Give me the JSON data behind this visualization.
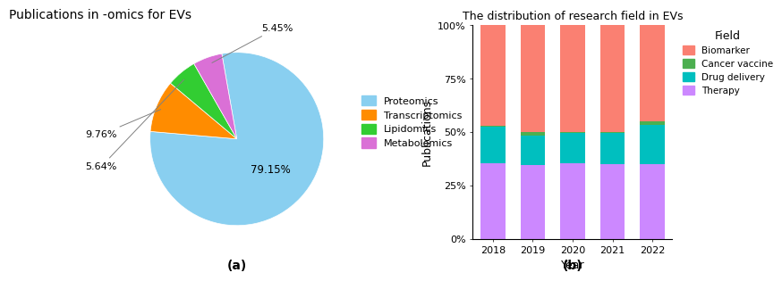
{
  "pie": {
    "title": "Publications in -omics for EVs",
    "labels": [
      "Proteomics",
      "Transcriptomics",
      "Lipidomics",
      "Metabolomics"
    ],
    "values": [
      79.15,
      9.76,
      5.64,
      5.45
    ],
    "colors": [
      "#89CFF0",
      "#FF8C00",
      "#32CD32",
      "#DA70D6"
    ],
    "label_text": [
      "79.15%",
      "9.76%",
      "5.64%",
      "5.45%"
    ],
    "startangle": 100
  },
  "bar": {
    "title": "The distribution of research field in EVs",
    "xlabel": "Year",
    "ylabel": "Publications",
    "years": [
      "2018",
      "2019",
      "2020",
      "2021",
      "2022"
    ],
    "fields": [
      "Therapy",
      "Drug delivery",
      "Cancer vaccine",
      "Biomarker"
    ],
    "colors": [
      "#CC88FF",
      "#00BFBF",
      "#4CAF50",
      "#FA8072"
    ],
    "values": {
      "Therapy": [
        35.5,
        34.5,
        35.5,
        35.0,
        35.0
      ],
      "Drug delivery": [
        17.0,
        14.0,
        14.0,
        14.5,
        18.5
      ],
      "Cancer vaccine": [
        0.5,
        1.5,
        0.5,
        0.5,
        1.5
      ],
      "Biomarker": [
        47.0,
        50.0,
        50.0,
        50.0,
        45.0
      ]
    }
  },
  "fig_label_a": "(a)",
  "fig_label_b": "(b)"
}
